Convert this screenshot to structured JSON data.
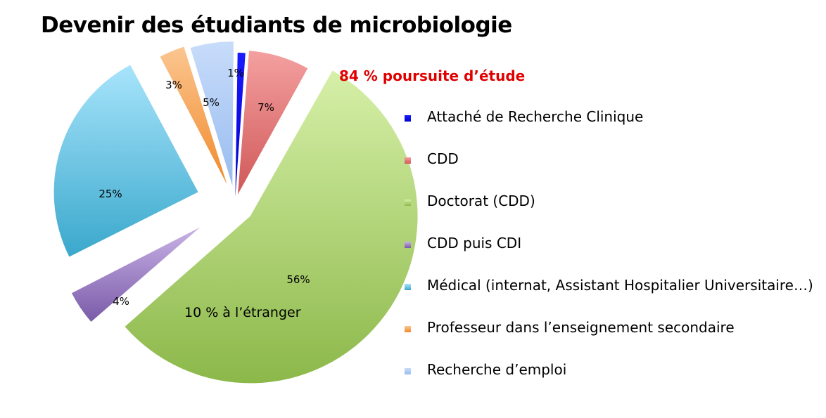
{
  "chart_data": {
    "type": "pie",
    "title": "Devenir des étudiants de microbiologie",
    "annotations": {
      "top": "84 % poursuite d’étude",
      "top_color": "#e00000",
      "inside": "10 % à l’étranger"
    },
    "slices": [
      {
        "name": "Attaché de Recherche Clinique",
        "value": 1,
        "label": "1%",
        "color": "#1a1aff",
        "color_dark": "#0000cc"
      },
      {
        "name": "CDD",
        "value": 7,
        "label": "7%",
        "color": "#f4a0a0",
        "color_dark": "#d05858"
      },
      {
        "name": "Doctorat (CDD)",
        "value": 56,
        "label": "56%",
        "color": "#d6f0a8",
        "color_dark": "#8cb84a"
      },
      {
        "name": "CDD puis CDI",
        "value": 4,
        "label": "4%",
        "color": "#c9b3e6",
        "color_dark": "#7a5aa8"
      },
      {
        "name": "Médical (internat, Assistant Hospitalier Universitaire…)",
        "value": 25,
        "label": "25%",
        "color": "#a8e4fb",
        "color_dark": "#3aa8cc"
      },
      {
        "name": "Professeur dans l’enseignement secondaire",
        "value": 3,
        "label": "3%",
        "color": "#fbc690",
        "color_dark": "#f08a2c"
      },
      {
        "name": "Recherche d’emploi",
        "value": 5,
        "label": "5%",
        "color": "#c8dcfa",
        "color_dark": "#98bcf0"
      }
    ],
    "legend_position": "right"
  }
}
